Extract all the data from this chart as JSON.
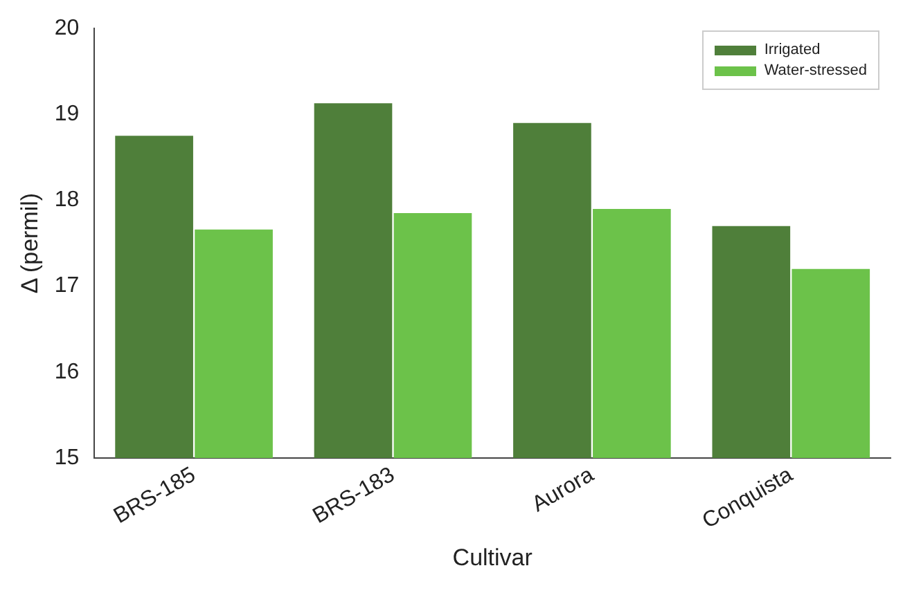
{
  "chart_data": {
    "type": "bar",
    "xlabel": "Cultivar",
    "ylabel": "Δ (permil)",
    "categories": [
      "BRS-185",
      "BRS-183",
      "Aurora",
      "Conquista"
    ],
    "series": [
      {
        "name": "Irrigated",
        "color": "#4f7f3a",
        "values": [
          18.75,
          19.13,
          18.9,
          17.7
        ]
      },
      {
        "name": "Water-stressed",
        "color": "#6cc24a",
        "values": [
          17.66,
          17.85,
          17.9,
          17.2
        ]
      }
    ],
    "ylim": [
      15,
      20
    ],
    "yticks": [
      15,
      16,
      17,
      18,
      19,
      20
    ],
    "legend": "top right",
    "grid": false
  }
}
